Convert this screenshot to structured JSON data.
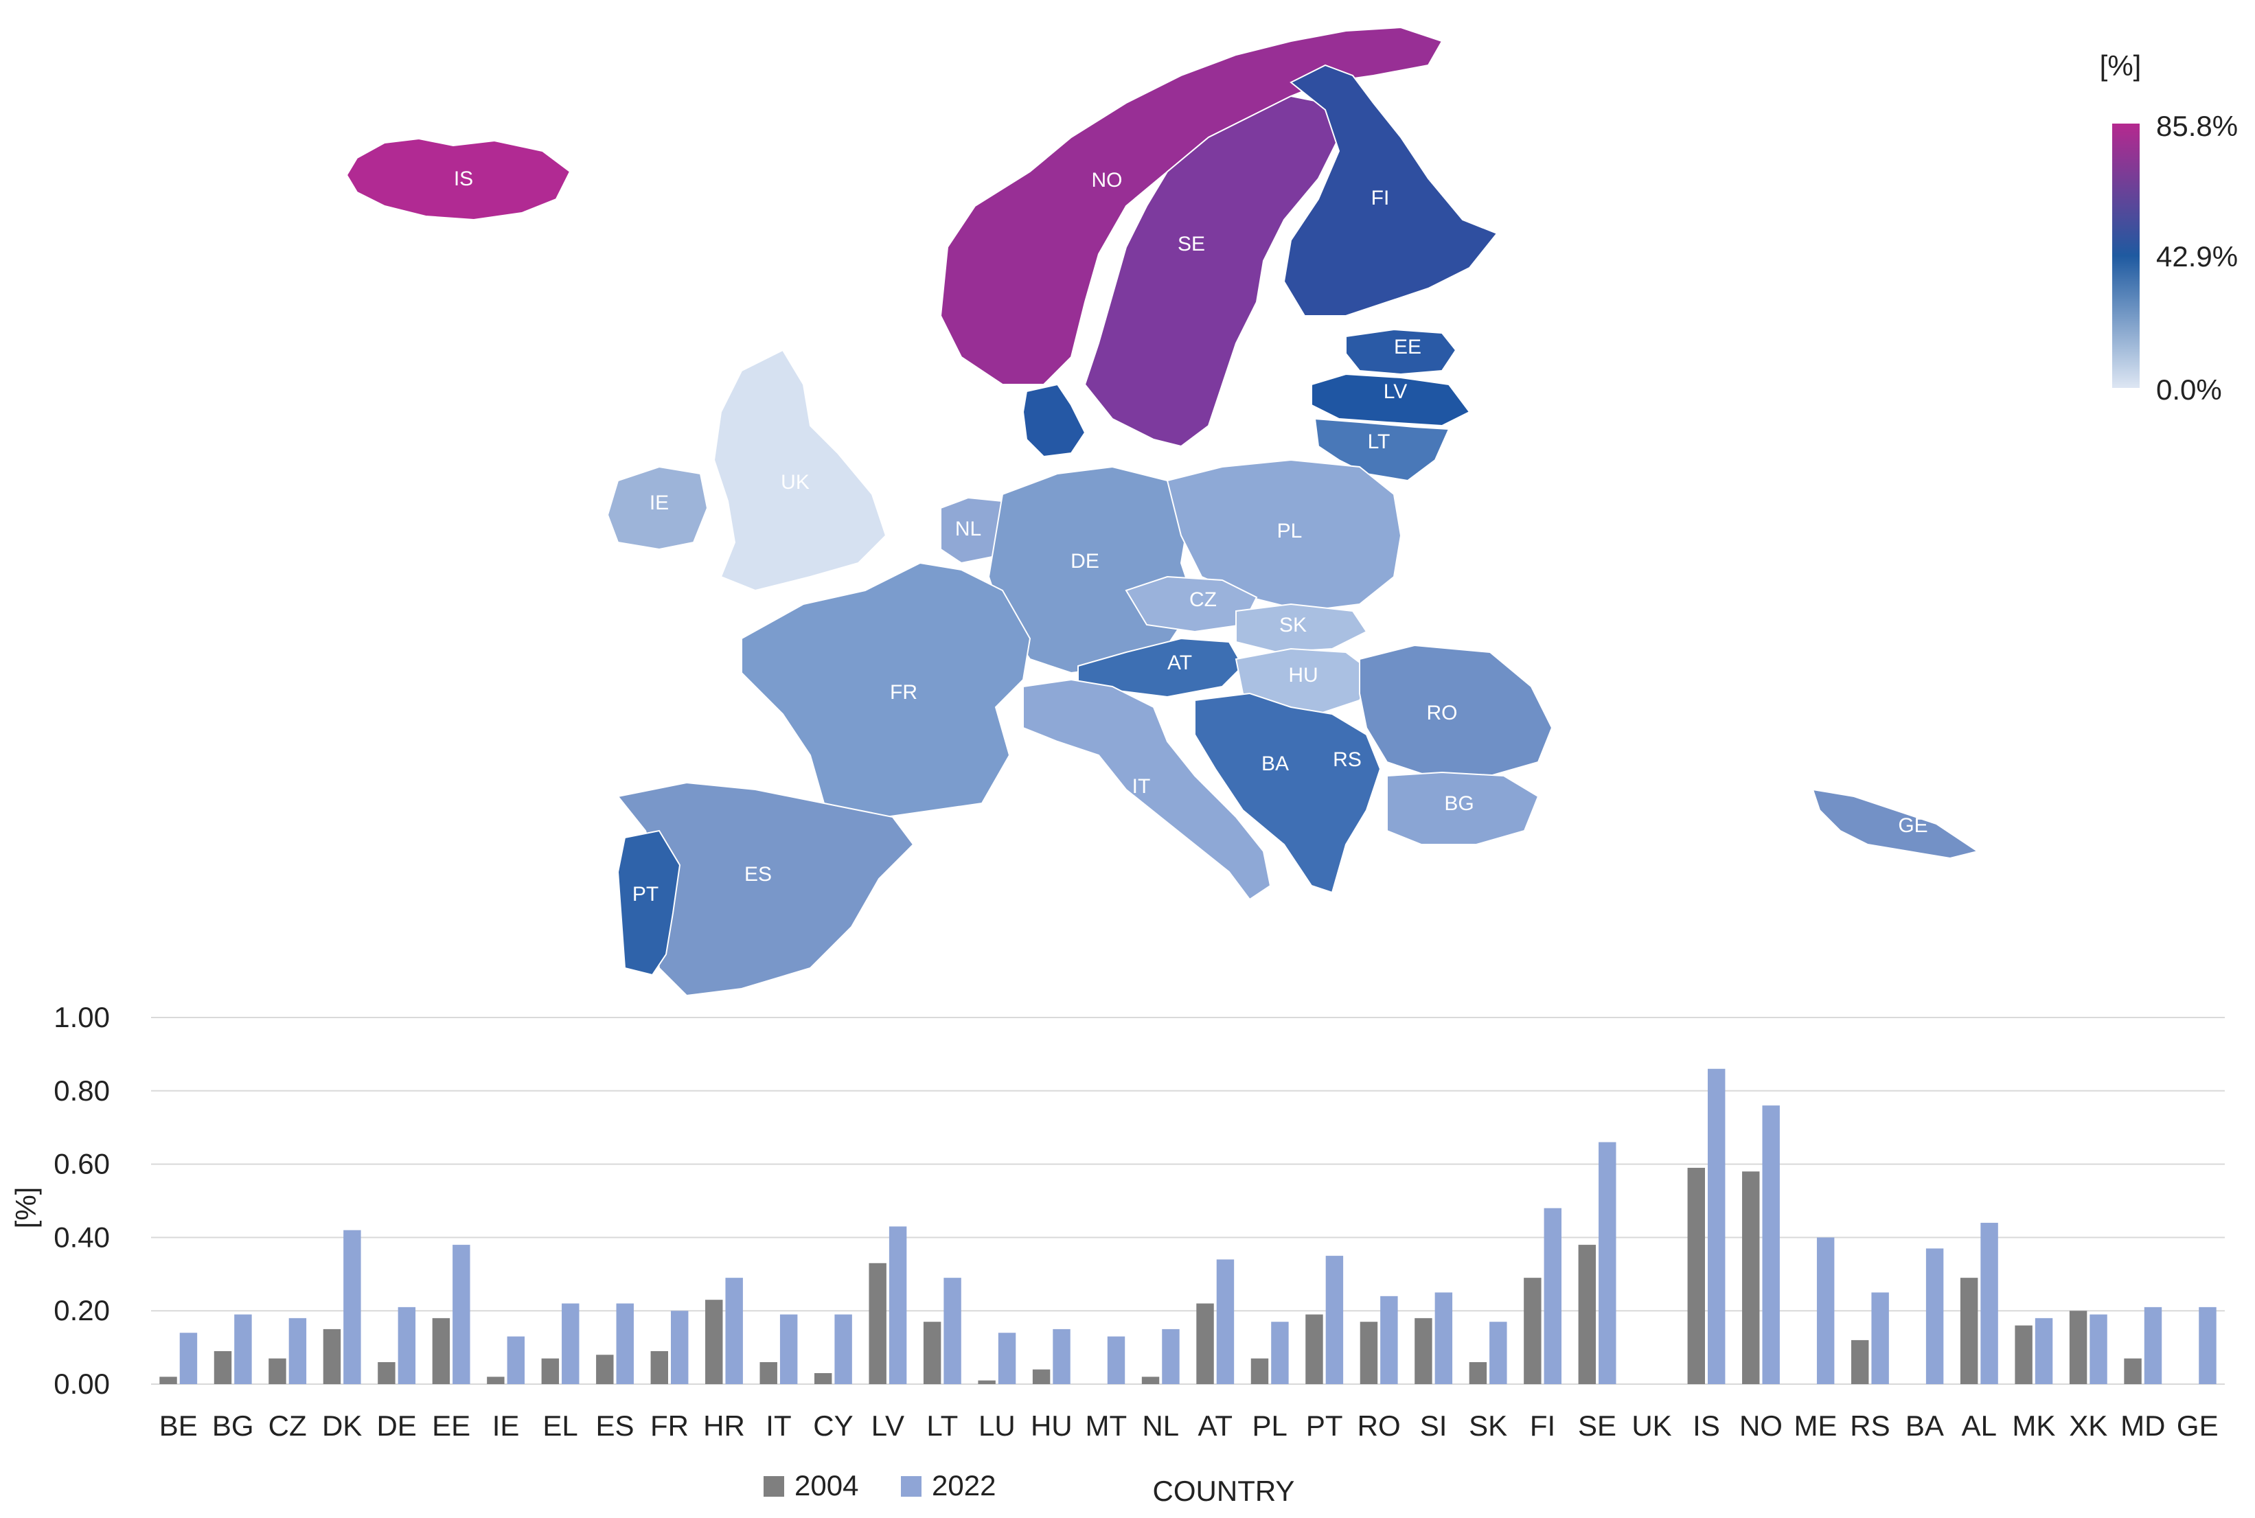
{
  "map": {
    "legend_unit": "[%]",
    "scale": {
      "max_label": "85.8%",
      "mid_label": "42.9%",
      "min_label": "0.0%",
      "max": 85.8,
      "mid": 42.9,
      "min": 0.0,
      "color_max": "#b5298f",
      "color_mid": "#1f5aa0",
      "color_min": "#dde6f3"
    },
    "countries": [
      {
        "code": "IS"
      },
      {
        "code": "NO"
      },
      {
        "code": "SE"
      },
      {
        "code": "FI"
      },
      {
        "code": "EE"
      },
      {
        "code": "LV"
      },
      {
        "code": "LT"
      },
      {
        "code": "IE"
      },
      {
        "code": "UK"
      },
      {
        "code": "NL"
      },
      {
        "code": "DE"
      },
      {
        "code": "PL"
      },
      {
        "code": "CZ"
      },
      {
        "code": "SK"
      },
      {
        "code": "AT"
      },
      {
        "code": "HU"
      },
      {
        "code": "RO"
      },
      {
        "code": "FR"
      },
      {
        "code": "BA"
      },
      {
        "code": "RS"
      },
      {
        "code": "IT"
      },
      {
        "code": "BG"
      },
      {
        "code": "GE"
      },
      {
        "code": "ES"
      },
      {
        "code": "PT"
      }
    ]
  },
  "chart_data": {
    "type": "bar",
    "xlabel": "COUNTRY",
    "ylabel": "[%]",
    "ylim": [
      0,
      1.0
    ],
    "yticks": [
      "0.00",
      "0.20",
      "0.40",
      "0.60",
      "0.80",
      "1.00"
    ],
    "grid": true,
    "legend_position": "bottom",
    "categories": [
      "BE",
      "BG",
      "CZ",
      "DK",
      "DE",
      "EE",
      "IE",
      "EL",
      "ES",
      "FR",
      "HR",
      "IT",
      "CY",
      "LV",
      "LT",
      "LU",
      "HU",
      "MT",
      "NL",
      "AT",
      "PL",
      "PT",
      "RO",
      "SI",
      "SK",
      "FI",
      "SE",
      "UK",
      "IS",
      "NO",
      "ME",
      "RS",
      "BA",
      "AL",
      "MK",
      "XK",
      "MD",
      "GE"
    ],
    "series": [
      {
        "name": "2004",
        "color": "#7f7f7f",
        "values": [
          0.02,
          0.09,
          0.07,
          0.15,
          0.06,
          0.18,
          0.02,
          0.07,
          0.08,
          0.09,
          0.23,
          0.06,
          0.03,
          0.33,
          0.17,
          0.01,
          0.04,
          0,
          0.02,
          0.22,
          0.07,
          0.19,
          0.17,
          0.18,
          0.06,
          0.29,
          0.38,
          0,
          0.59,
          0.58,
          0,
          0.12,
          0,
          0.29,
          0.16,
          0.2,
          0.07,
          0
        ]
      },
      {
        "name": "2022",
        "color": "#8fa5d6",
        "values": [
          0.14,
          0.19,
          0.18,
          0.42,
          0.21,
          0.38,
          0.13,
          0.22,
          0.22,
          0.2,
          0.29,
          0.19,
          0.19,
          0.43,
          0.29,
          0.14,
          0.15,
          0.13,
          0.15,
          0.34,
          0.17,
          0.35,
          0.24,
          0.25,
          0.17,
          0.48,
          0.66,
          0,
          0.86,
          0.76,
          0.4,
          0.25,
          0.37,
          0.44,
          0.18,
          0.19,
          0.21,
          0.21
        ]
      }
    ]
  }
}
